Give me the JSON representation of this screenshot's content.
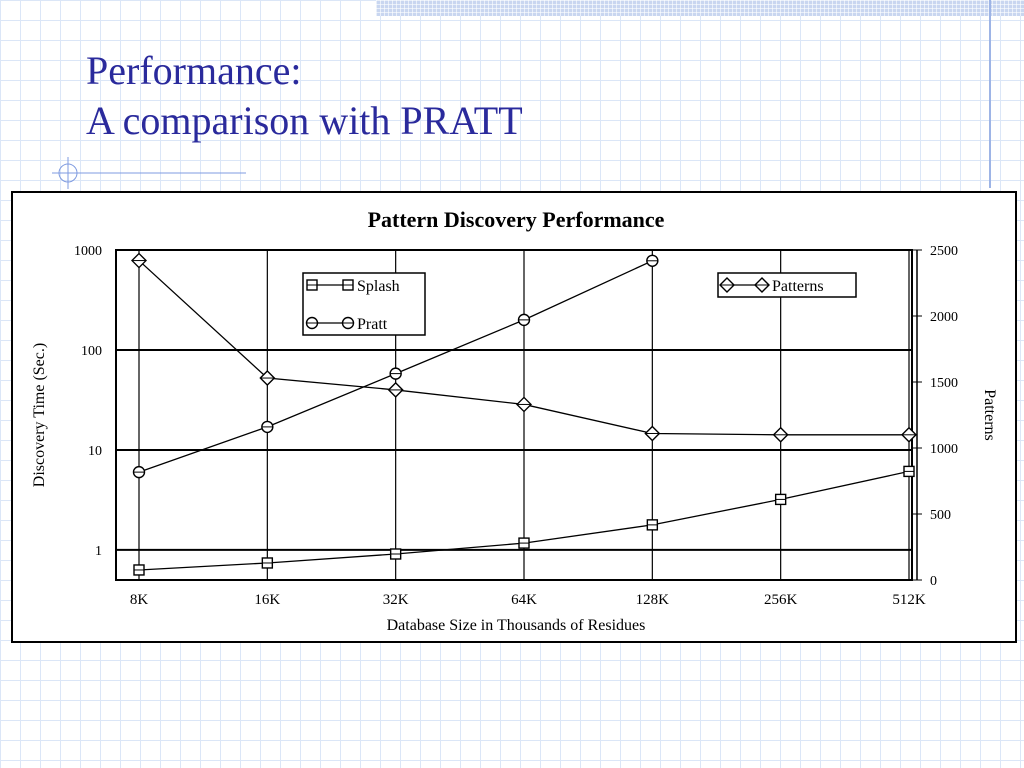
{
  "slide": {
    "title_line1": "Performance:",
    "title_line2": "A comparison with PRATT"
  },
  "colors": {
    "title": "#2a2a9c",
    "grid_lines": "#dbe6f7",
    "accent_band": "#c9d6f0"
  },
  "chart_data": {
    "type": "line",
    "title": "Pattern Discovery Performance",
    "xlabel": "Database Size in Thousands of Residues",
    "ylabel_left": "Discovery Time (Sec.)",
    "ylabel_right": "Patterns",
    "categories": [
      "8K",
      "16K",
      "32K",
      "64K",
      "128K",
      "256K",
      "512K"
    ],
    "y_left": {
      "scale": "log",
      "range": [
        0.5,
        1000
      ],
      "ticks": [
        1,
        10,
        100,
        1000
      ],
      "tick_labels": [
        "1",
        "10",
        "100",
        "1000"
      ]
    },
    "y_right": {
      "scale": "linear",
      "range": [
        0,
        2500
      ],
      "ticks": [
        0,
        500,
        1000,
        1500,
        2000,
        2500
      ],
      "tick_labels": [
        "0",
        "500",
        "1000",
        "1500",
        "2000",
        "2500"
      ]
    },
    "grid": true,
    "series": [
      {
        "name": "Splash",
        "axis": "left",
        "marker": "square",
        "values": [
          0.63,
          0.74,
          0.91,
          1.17,
          1.78,
          3.2,
          6.1
        ]
      },
      {
        "name": "Pratt",
        "axis": "left",
        "marker": "circle",
        "values": [
          6,
          17,
          58,
          200,
          780,
          null,
          null
        ]
      },
      {
        "name": "Patterns",
        "axis": "right",
        "marker": "diamond",
        "values": [
          2420,
          1530,
          1440,
          1330,
          1110,
          1100,
          1100
        ]
      }
    ],
    "legends": [
      {
        "placement": "top-left",
        "entries": [
          "Splash",
          "Pratt"
        ]
      },
      {
        "placement": "top-right",
        "entries": [
          "Patterns"
        ]
      }
    ]
  }
}
